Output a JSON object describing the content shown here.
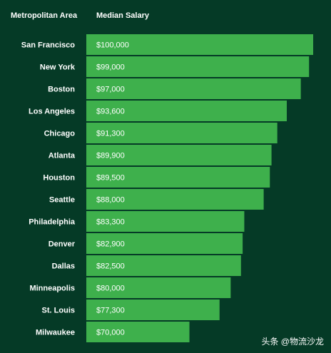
{
  "header": {
    "area_label": "Metropolitan Area",
    "salary_label": "Median Salary"
  },
  "chart_data": {
    "type": "bar",
    "orientation": "horizontal",
    "categories": [
      "San Francisco",
      "New York",
      "Boston",
      "Los Angeles",
      "Chicago",
      "Atlanta",
      "Houston",
      "Seattle",
      "Philadelphia",
      "Denver",
      "Dallas",
      "Minneapolis",
      "St. Louis",
      "Milwaukee"
    ],
    "values": [
      100000,
      99000,
      97000,
      93600,
      91300,
      89900,
      89500,
      88000,
      83300,
      82900,
      82500,
      80000,
      77300,
      70000
    ],
    "value_labels": [
      "$100,000",
      "$99,000",
      "$97,000",
      "$93,600",
      "$91,300",
      "$89,900",
      "$89,500",
      "$88,000",
      "$83,300",
      "$82,900",
      "$82,500",
      "$80,000",
      "$77,300",
      "$70,000"
    ],
    "title": "",
    "xlabel": "",
    "ylabel": "",
    "xlim": [
      45000,
      100000
    ],
    "grid": false,
    "legend": "none"
  },
  "colors": {
    "background": "#053a26",
    "bar": "#3eb04c",
    "text": "#ffffff"
  },
  "watermark": "头条 @物流沙龙"
}
